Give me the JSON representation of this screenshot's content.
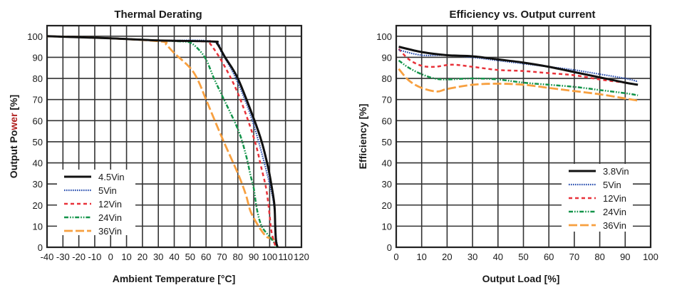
{
  "chart_data": [
    {
      "type": "line",
      "title": "Thermal Derating",
      "xlabel": "Ambient Temperature [°C]",
      "ylabel_parts": [
        "Output Po",
        "wer",
        " [%]"
      ],
      "ylabel_colors": [
        "#1a1a1a",
        "#b0201e",
        "#1a1a1a"
      ],
      "xlim": [
        -40,
        120
      ],
      "ylim": [
        0,
        105
      ],
      "xticks": [
        -40,
        -30,
        -20,
        -10,
        0,
        10,
        20,
        30,
        40,
        50,
        60,
        70,
        80,
        90,
        100,
        110,
        120
      ],
      "yticks": [
        0,
        10,
        20,
        30,
        40,
        50,
        60,
        70,
        80,
        90,
        100
      ],
      "grid": true,
      "legend_position": "bottom-left",
      "series": [
        {
          "name": "4.5Vin",
          "color": "#111111",
          "style": "solid",
          "x": [
            -40,
            -20,
            0,
            30,
            64,
            67,
            72,
            80,
            90,
            95,
            99,
            101,
            103,
            103.5,
            104,
            105
          ],
          "y": [
            100,
            99.5,
            99,
            98,
            97.5,
            96.5,
            90,
            80,
            61,
            50,
            38,
            30,
            20,
            10,
            3,
            0
          ]
        },
        {
          "name": "5Vin",
          "color": "#2a4fb0",
          "style": "dotted",
          "x": [
            -40,
            0,
            30,
            64,
            70,
            80,
            90,
            100,
            103,
            104,
            105
          ],
          "y": [
            100,
            99,
            98,
            97.5,
            92,
            78,
            58,
            30,
            18,
            5,
            0
          ]
        },
        {
          "name": "12Vin",
          "color": "#e8323a",
          "style": "dashed",
          "x": [
            -40,
            0,
            30,
            60,
            62,
            70,
            80,
            90,
            95,
            98,
            100,
            101,
            103,
            104
          ],
          "y": [
            100,
            99,
            98,
            97.5,
            97,
            88,
            73,
            52,
            37,
            27,
            15,
            8,
            2,
            0
          ]
        },
        {
          "name": "24Vin",
          "color": "#13944a",
          "style": "dashdot",
          "x": [
            -40,
            0,
            30,
            45,
            50,
            55,
            60,
            65,
            70,
            80,
            85,
            88,
            90,
            92,
            95,
            100,
            103,
            104
          ],
          "y": [
            100,
            99,
            98,
            97.5,
            97,
            94,
            89,
            80,
            72,
            56,
            44,
            34,
            28,
            18,
            10,
            5,
            2,
            0
          ]
        },
        {
          "name": "36Vin",
          "color": "#f7a040",
          "style": "longdash",
          "x": [
            -40,
            0,
            32,
            35,
            40,
            50,
            55,
            60,
            70,
            80,
            85,
            88,
            93,
            98,
            102,
            105
          ],
          "y": [
            100,
            99,
            97.5,
            96,
            92,
            85,
            79,
            70,
            52,
            35,
            25,
            17,
            10,
            5,
            4,
            0
          ]
        }
      ]
    },
    {
      "type": "line",
      "title": "Efficiency vs. Output current",
      "xlabel": "Output Load [%]",
      "ylabel_parts": [
        "Efficiency [%]"
      ],
      "ylabel_colors": [
        "#1a1a1a"
      ],
      "xlim": [
        0,
        100
      ],
      "ylim": [
        0,
        105
      ],
      "xticks": [
        0,
        10,
        20,
        30,
        40,
        50,
        60,
        70,
        80,
        90,
        100
      ],
      "yticks": [
        0,
        10,
        20,
        30,
        40,
        50,
        60,
        70,
        80,
        90,
        100
      ],
      "grid": true,
      "legend_position": "bottom-right",
      "series": [
        {
          "name": "3.8Vin",
          "color": "#111111",
          "style": "solid",
          "x": [
            1,
            10,
            20,
            30,
            40,
            50,
            60,
            70,
            80,
            90,
            95
          ],
          "y": [
            95,
            92.5,
            91,
            90.5,
            89,
            87.5,
            85.5,
            83,
            80.5,
            78,
            77
          ]
        },
        {
          "name": "5Vin",
          "color": "#2a4fb0",
          "style": "dotted",
          "x": [
            1,
            10,
            20,
            30,
            40,
            50,
            60,
            70,
            80,
            90,
            95
          ],
          "y": [
            93.5,
            91,
            91,
            90,
            88.5,
            87,
            85.5,
            84,
            82,
            80,
            78.5
          ]
        },
        {
          "name": "12Vin",
          "color": "#e8323a",
          "style": "dashed",
          "x": [
            1,
            5,
            10,
            15,
            22,
            30,
            40,
            50,
            60,
            70,
            80,
            90
          ],
          "y": [
            94,
            89,
            86,
            85.5,
            86.5,
            85.5,
            84,
            83.5,
            82.5,
            81.5,
            79.5,
            78
          ]
        },
        {
          "name": "24Vin",
          "color": "#13944a",
          "style": "dashdot",
          "x": [
            1,
            5,
            10,
            15,
            20,
            30,
            40,
            50,
            60,
            70,
            80,
            90,
            95
          ],
          "y": [
            88.5,
            85,
            82,
            80,
            79.5,
            80,
            79.5,
            78,
            77,
            76,
            74.5,
            73,
            72
          ]
        },
        {
          "name": "36Vin",
          "color": "#f7a040",
          "style": "longdash",
          "x": [
            1,
            5,
            10,
            16,
            20,
            30,
            40,
            50,
            60,
            70,
            80,
            90,
            95
          ],
          "y": [
            84.5,
            79,
            75.5,
            73.8,
            75,
            77,
            77.5,
            77,
            75.5,
            74,
            72.5,
            70.5,
            69.5
          ]
        }
      ]
    }
  ]
}
